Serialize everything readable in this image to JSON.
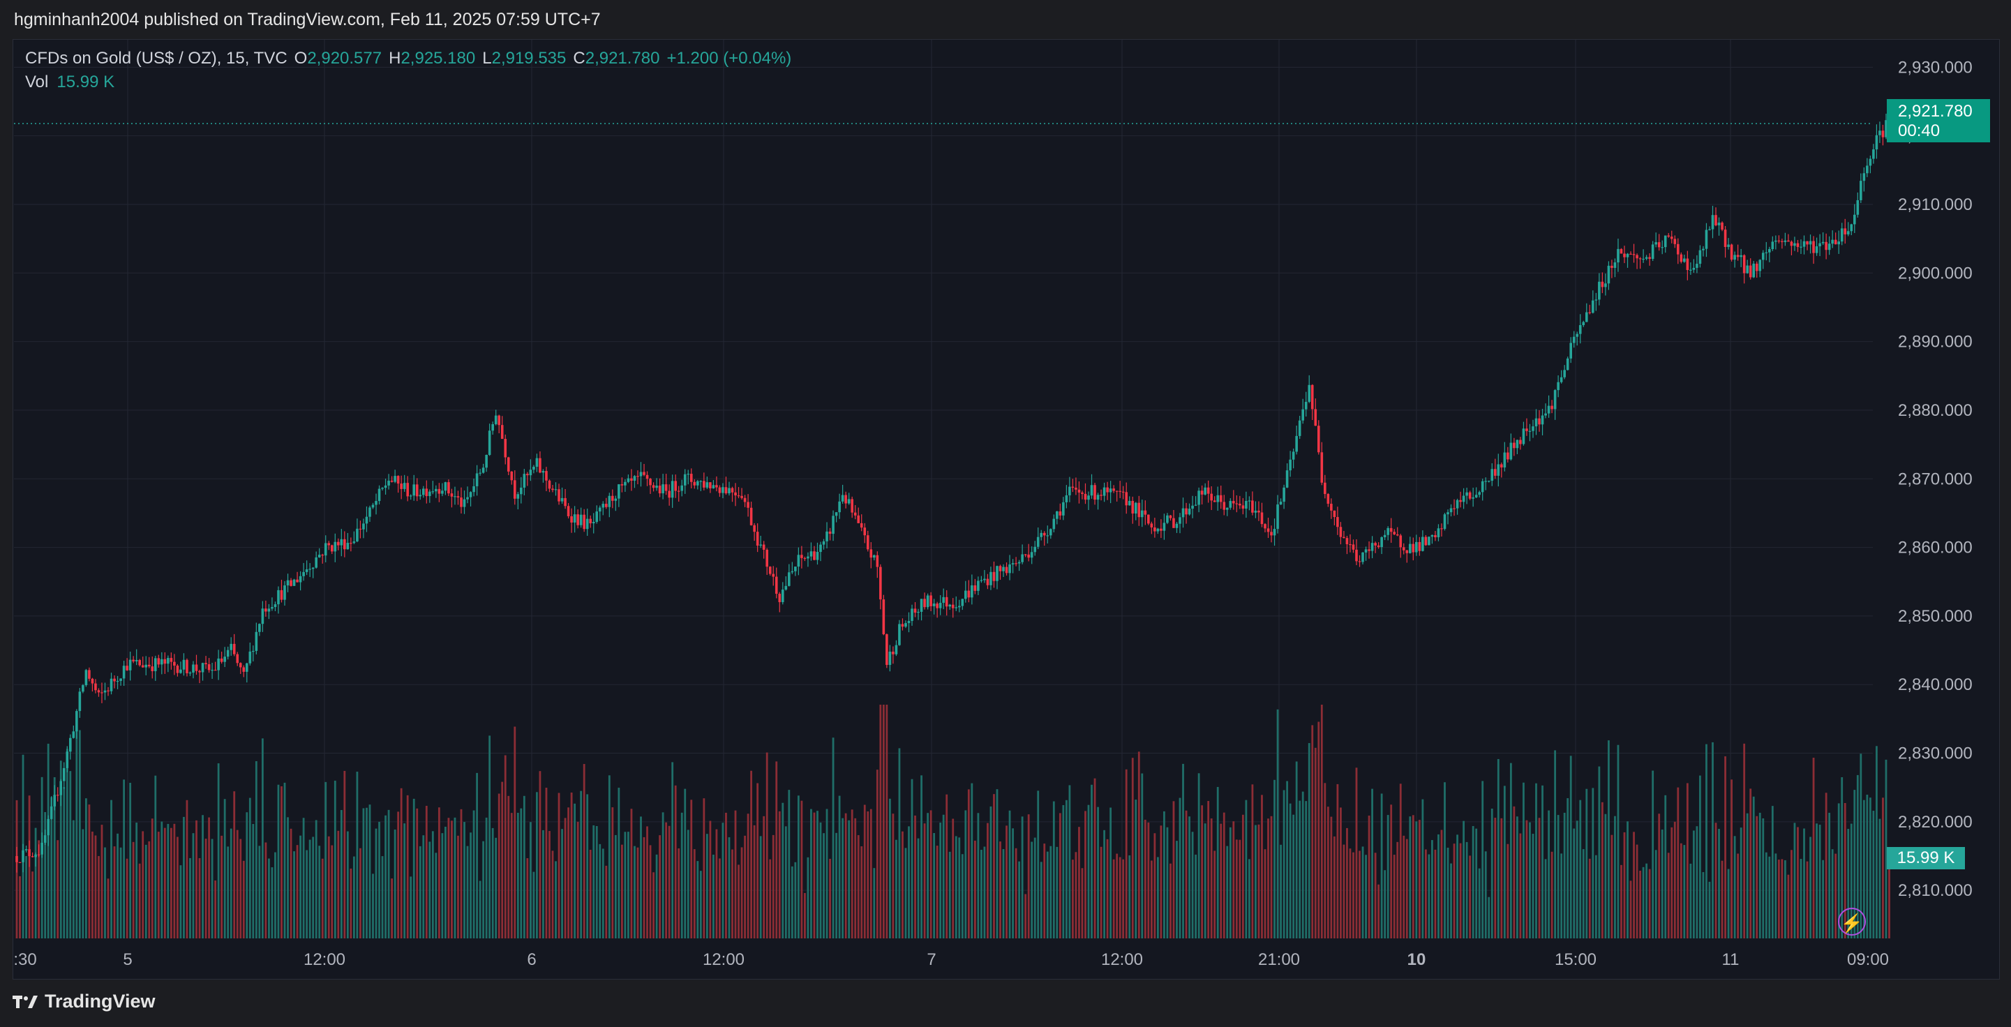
{
  "header": {
    "published_text": "hgminhanh2004 published on TradingView.com, Feb 11, 2025 07:59 UTC+7"
  },
  "legend": {
    "symbol": "CFDs on Gold (US$ / OZ), 15, TVC",
    "open_label": "O",
    "open": "2,920.577",
    "high_label": "H",
    "high": "2,925.180",
    "low_label": "L",
    "low": "2,919.535",
    "close_label": "C",
    "close": "2,921.780",
    "change": "+1.200 (+0.04%)",
    "vol_label": "Vol",
    "vol_value": "15.99 K"
  },
  "price_tag": {
    "price": "2,921.780",
    "countdown": "00:40"
  },
  "volume_tag": "15.99 K",
  "footer": {
    "brand": "TradingView"
  },
  "colors": {
    "up": "#26a69a",
    "down": "#f23645",
    "background": "#141720",
    "grid": "#232733"
  },
  "chart_data": {
    "type": "candlestick",
    "interval": "15",
    "y_ticks": [
      "2,930.000",
      "2,920.000",
      "2,910.000",
      "2,900.000",
      "2,890.000",
      "2,880.000",
      "2,870.000",
      "2,860.000",
      "2,850.000",
      "2,840.000",
      "2,830.000",
      "2,820.000",
      "2,810.000"
    ],
    "ylim": [
      2803,
      2934
    ],
    "x_ticks": [
      {
        "label": ":30",
        "bold": false
      },
      {
        "label": "5",
        "bold": false
      },
      {
        "label": "12:00",
        "bold": false
      },
      {
        "label": "6",
        "bold": false
      },
      {
        "label": "12:00",
        "bold": false
      },
      {
        "label": "7",
        "bold": false
      },
      {
        "label": "12:00",
        "bold": false
      },
      {
        "label": "21:00",
        "bold": false
      },
      {
        "label": "10",
        "bold": true
      },
      {
        "label": "15:00",
        "bold": false
      },
      {
        "label": "11",
        "bold": false
      },
      {
        "label": "09:00",
        "bold": false
      }
    ],
    "last_price": 2921.78,
    "price_keypoints": [
      [
        0,
        2815
      ],
      [
        8,
        2816
      ],
      [
        16,
        2830
      ],
      [
        22,
        2842
      ],
      [
        26,
        2838
      ],
      [
        35,
        2843
      ],
      [
        48,
        2843
      ],
      [
        62,
        2842
      ],
      [
        68,
        2845
      ],
      [
        72,
        2841
      ],
      [
        78,
        2851
      ],
      [
        88,
        2855
      ],
      [
        98,
        2860
      ],
      [
        106,
        2861
      ],
      [
        112,
        2865
      ],
      [
        118,
        2870
      ],
      [
        125,
        2868
      ],
      [
        135,
        2869
      ],
      [
        142,
        2866
      ],
      [
        148,
        2872
      ],
      [
        152,
        2880
      ],
      [
        158,
        2868
      ],
      [
        165,
        2872
      ],
      [
        175,
        2865
      ],
      [
        182,
        2863
      ],
      [
        190,
        2868
      ],
      [
        198,
        2870
      ],
      [
        206,
        2868
      ],
      [
        212,
        2870
      ],
      [
        222,
        2869
      ],
      [
        230,
        2868
      ],
      [
        236,
        2860
      ],
      [
        242,
        2853
      ],
      [
        248,
        2858
      ],
      [
        256,
        2860
      ],
      [
        262,
        2868
      ],
      [
        268,
        2862
      ],
      [
        273,
        2857
      ],
      [
        276,
        2843
      ],
      [
        280,
        2848
      ],
      [
        288,
        2852
      ],
      [
        298,
        2852
      ],
      [
        306,
        2855
      ],
      [
        318,
        2858
      ],
      [
        326,
        2862
      ],
      [
        334,
        2868
      ],
      [
        344,
        2868
      ],
      [
        352,
        2867
      ],
      [
        360,
        2863
      ],
      [
        368,
        2864
      ],
      [
        376,
        2868
      ],
      [
        384,
        2866
      ],
      [
        392,
        2866
      ],
      [
        398,
        2862
      ],
      [
        404,
        2872
      ],
      [
        410,
        2884
      ],
      [
        414,
        2870
      ],
      [
        420,
        2862
      ],
      [
        426,
        2858
      ],
      [
        434,
        2862
      ],
      [
        442,
        2860
      ],
      [
        450,
        2861
      ],
      [
        455,
        2866
      ],
      [
        463,
        2868
      ],
      [
        472,
        2873
      ],
      [
        480,
        2878
      ],
      [
        486,
        2880
      ],
      [
        494,
        2890
      ],
      [
        500,
        2896
      ],
      [
        508,
        2903
      ],
      [
        516,
        2902
      ],
      [
        524,
        2905
      ],
      [
        532,
        2900
      ],
      [
        538,
        2908
      ],
      [
        544,
        2903
      ],
      [
        550,
        2900
      ],
      [
        558,
        2905
      ],
      [
        566,
        2904
      ],
      [
        574,
        2904
      ],
      [
        582,
        2907
      ],
      [
        586,
        2915
      ],
      [
        590,
        2920
      ],
      [
        594,
        2921.78
      ]
    ],
    "volume_scale_max": 32000
  }
}
